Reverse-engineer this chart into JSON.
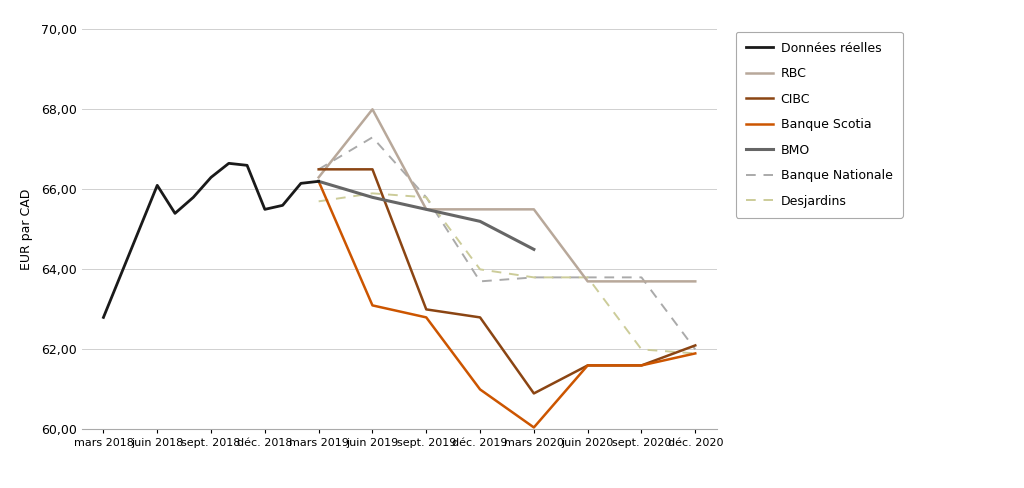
{
  "x_labels": [
    "mars 2018",
    "juin 2018",
    "sept. 2018",
    "déc. 2018",
    "mars 2019",
    "juin 2019",
    "sept. 2019",
    "déc. 2019",
    "mars 2020",
    "juin 2020",
    "sept. 2020",
    "déc. 2020"
  ],
  "donnees_reelles": {
    "x": [
      0,
      1,
      1.33,
      1.67,
      2,
      2.33,
      2.67,
      3,
      3.33,
      3.67,
      4
    ],
    "y": [
      62.8,
      66.1,
      65.4,
      65.8,
      66.3,
      66.65,
      66.6,
      65.5,
      65.6,
      66.15,
      66.2
    ],
    "color": "#1a1a1a",
    "label": "Données réelles",
    "linewidth": 2.0
  },
  "rbc": {
    "x": [
      4,
      5,
      6,
      7,
      8,
      9,
      10,
      11
    ],
    "y": [
      66.3,
      68.0,
      65.5,
      65.5,
      65.5,
      63.7,
      63.7,
      63.7
    ],
    "color": "#b8a89a",
    "label": "RBC",
    "linewidth": 1.8
  },
  "cibc": {
    "x": [
      4,
      5,
      6,
      7,
      8,
      9,
      10,
      11
    ],
    "y": [
      66.5,
      66.5,
      63.0,
      62.8,
      60.9,
      61.6,
      61.6,
      62.1
    ],
    "color": "#8b4513",
    "label": "CIBC",
    "linewidth": 1.8
  },
  "banque_scotia": {
    "x": [
      4,
      5,
      6,
      7,
      8,
      9,
      10,
      11
    ],
    "y": [
      66.2,
      63.1,
      62.8,
      61.0,
      60.05,
      61.6,
      61.6,
      61.9
    ],
    "color": "#cc5500",
    "label": "Banque Scotia",
    "linewidth": 1.8
  },
  "bmo": {
    "x": [
      4,
      5,
      6,
      7,
      8
    ],
    "y": [
      66.2,
      65.8,
      65.5,
      65.2,
      64.5
    ],
    "color": "#666666",
    "label": "BMO",
    "linewidth": 2.2
  },
  "banque_nationale": {
    "x": [
      4,
      5,
      6,
      7,
      8,
      9,
      10,
      11
    ],
    "y": [
      66.5,
      67.3,
      65.8,
      63.7,
      63.8,
      63.8,
      63.8,
      62.0
    ],
    "color": "#aaaaaa",
    "label": "Banque Nationale",
    "linewidth": 1.4
  },
  "desjardins": {
    "x": [
      4,
      5,
      6,
      7,
      8,
      9,
      10,
      11
    ],
    "y": [
      65.7,
      65.9,
      65.8,
      64.0,
      63.8,
      63.8,
      62.0,
      61.9
    ],
    "color": "#cccc99",
    "label": "Desjardins",
    "linewidth": 1.4
  },
  "ylabel": "EUR par CAD",
  "ylim": [
    60.0,
    70.0
  ],
  "yticks": [
    60.0,
    62.0,
    64.0,
    66.0,
    68.0,
    70.0
  ],
  "background_color": "#ffffff",
  "grid_color": "#d0d0d0",
  "border_color": "#aaaaaa"
}
